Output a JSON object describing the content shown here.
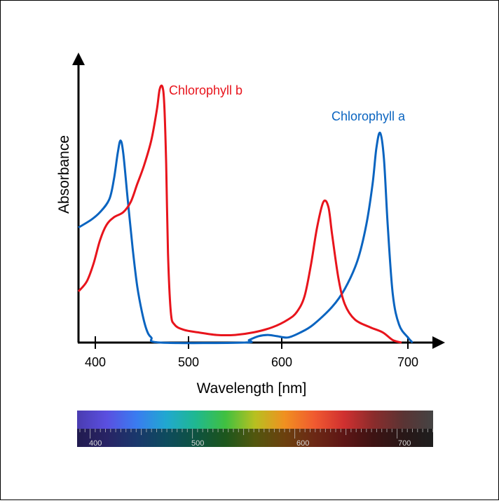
{
  "chart_data": {
    "type": "line",
    "xlabel": "Wavelength [nm]",
    "ylabel": "Absorbance",
    "xlim": [
      380,
      715
    ],
    "ylim": [
      0,
      1.0
    ],
    "x_ticks": [
      400,
      500,
      600,
      700
    ],
    "y_ticks": [],
    "grid": false,
    "series": [
      {
        "name": "Chlorophyll a",
        "color": "#0a64c0",
        "points": [
          [
            380,
            0.45
          ],
          [
            395,
            0.48
          ],
          [
            405,
            0.51
          ],
          [
            415,
            0.56
          ],
          [
            420,
            0.64
          ],
          [
            424,
            0.74
          ],
          [
            427,
            0.79
          ],
          [
            430,
            0.74
          ],
          [
            435,
            0.55
          ],
          [
            440,
            0.37
          ],
          [
            445,
            0.22
          ],
          [
            450,
            0.12
          ],
          [
            455,
            0.05
          ],
          [
            460,
            0.02
          ],
          [
            470,
            0.0
          ],
          [
            560,
            0.0
          ],
          [
            565,
            0.01
          ],
          [
            575,
            0.025
          ],
          [
            585,
            0.03
          ],
          [
            595,
            0.025
          ],
          [
            605,
            0.02
          ],
          [
            615,
            0.04
          ],
          [
            625,
            0.07
          ],
          [
            640,
            0.14
          ],
          [
            650,
            0.21
          ],
          [
            660,
            0.32
          ],
          [
            667,
            0.46
          ],
          [
            672,
            0.62
          ],
          [
            675,
            0.76
          ],
          [
            678,
            0.82
          ],
          [
            681,
            0.72
          ],
          [
            684,
            0.46
          ],
          [
            688,
            0.19
          ],
          [
            693,
            0.07
          ],
          [
            700,
            0.02
          ],
          [
            705,
            0.0
          ]
        ]
      },
      {
        "name": "Chlorophyll b",
        "color": "#e8141c",
        "points": [
          [
            380,
            0.2
          ],
          [
            390,
            0.24
          ],
          [
            398,
            0.31
          ],
          [
            405,
            0.4
          ],
          [
            412,
            0.46
          ],
          [
            420,
            0.49
          ],
          [
            430,
            0.51
          ],
          [
            438,
            0.55
          ],
          [
            445,
            0.62
          ],
          [
            452,
            0.69
          ],
          [
            460,
            0.79
          ],
          [
            466,
            0.91
          ],
          [
            469,
            0.99
          ],
          [
            472,
            1.0
          ],
          [
            474,
            0.93
          ],
          [
            476,
            0.7
          ],
          [
            478,
            0.35
          ],
          [
            481,
            0.12
          ],
          [
            485,
            0.07
          ],
          [
            495,
            0.05
          ],
          [
            510,
            0.04
          ],
          [
            530,
            0.03
          ],
          [
            550,
            0.03
          ],
          [
            570,
            0.04
          ],
          [
            590,
            0.06
          ],
          [
            605,
            0.09
          ],
          [
            612,
            0.12
          ],
          [
            618,
            0.18
          ],
          [
            623,
            0.3
          ],
          [
            628,
            0.45
          ],
          [
            633,
            0.55
          ],
          [
            637,
            0.53
          ],
          [
            640,
            0.42
          ],
          [
            645,
            0.25
          ],
          [
            650,
            0.15
          ],
          [
            658,
            0.09
          ],
          [
            670,
            0.06
          ],
          [
            680,
            0.04
          ],
          [
            688,
            0.01
          ],
          [
            695,
            0.0
          ]
        ]
      }
    ]
  },
  "spectrum_bar": {
    "labels": [
      "400",
      "500",
      "600",
      "700"
    ],
    "colors": [
      "#4a3cb0",
      "#5a4fe0",
      "#3a7cf0",
      "#20a8d0",
      "#1fb890",
      "#40c040",
      "#b8c020",
      "#f09020",
      "#f05a30",
      "#d03030",
      "#8a2c2c",
      "#5a3434",
      "#444444"
    ]
  }
}
